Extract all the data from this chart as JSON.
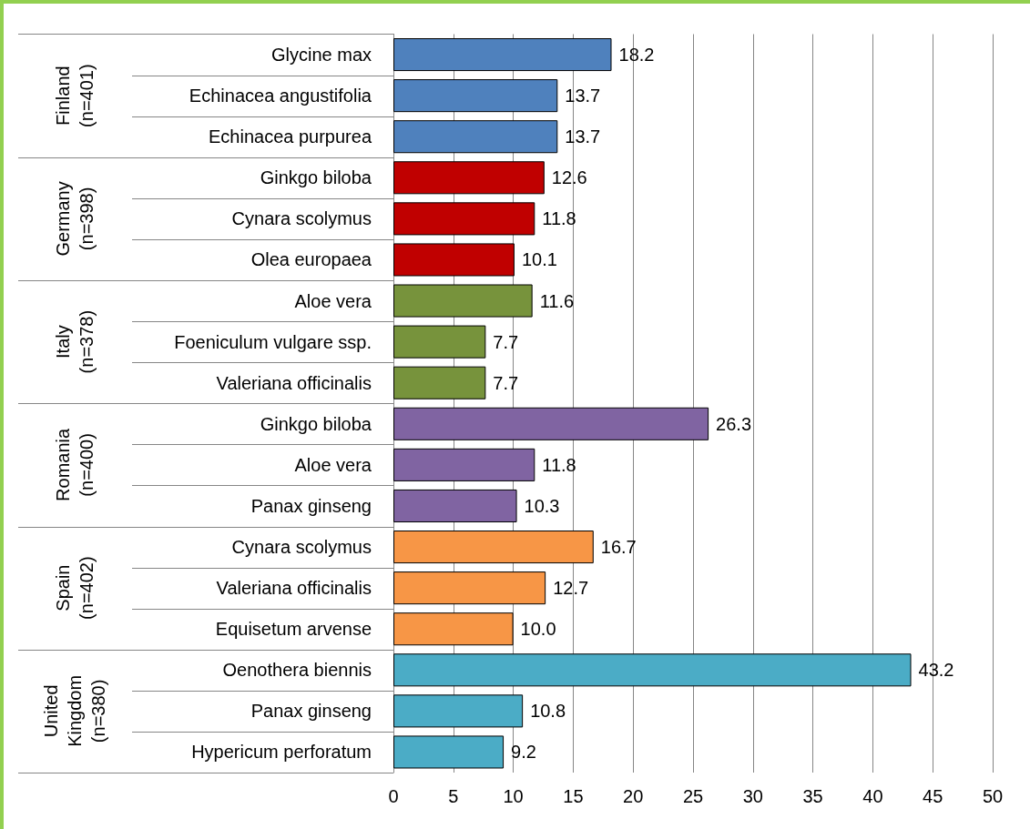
{
  "chart_data": {
    "type": "bar",
    "orientation": "horizontal",
    "categories": [
      "Glycine max",
      "Echinacea angustifolia",
      "Echinacea purpurea",
      "Ginkgo biloba",
      "Cynara scolymus",
      "Olea europaea",
      "Aloe vera",
      "Foeniculum vulgare ssp.",
      "Valeriana officinalis",
      "Ginkgo biloba",
      "Aloe vera",
      "Panax ginseng",
      "Cynara scolymus",
      "Valeriana officinalis",
      "Equisetum arvense",
      "Oenothera biennis",
      "Panax ginseng",
      "Hypericum perforatum"
    ],
    "values": [
      18.2,
      13.7,
      13.7,
      12.6,
      11.8,
      10.1,
      11.6,
      7.7,
      7.7,
      26.3,
      11.8,
      10.3,
      16.7,
      12.7,
      10.0,
      43.2,
      10.8,
      9.2
    ],
    "value_labels": [
      "18.2",
      "13.7",
      "13.7",
      "12.6",
      "11.8",
      "10.1",
      "11.6",
      "7.7",
      "7.7",
      "26.3",
      "11.8",
      "10.3",
      "16.7",
      "12.7",
      "10.0",
      "43.2",
      "10.8",
      "9.2"
    ],
    "colors": [
      "#4f81bd",
      "#4f81bd",
      "#4f81bd",
      "#c00000",
      "#c00000",
      "#c00000",
      "#77933c",
      "#77933c",
      "#77933c",
      "#8064a2",
      "#8064a2",
      "#8064a2",
      "#f79646",
      "#f79646",
      "#f79646",
      "#4bacc6",
      "#4bacc6",
      "#4bacc6"
    ],
    "annotations": [
      "Finland (n=401)",
      "Germany (n=398)",
      "Italy (n=378)",
      "Romania (n=400)",
      "Spain (n=402)",
      "United Kingdom (n=380)"
    ],
    "xlim": [
      0,
      50
    ],
    "xticks": [
      0,
      5,
      10,
      15,
      20,
      25,
      30,
      35,
      40,
      45,
      50
    ],
    "grid": "x"
  }
}
